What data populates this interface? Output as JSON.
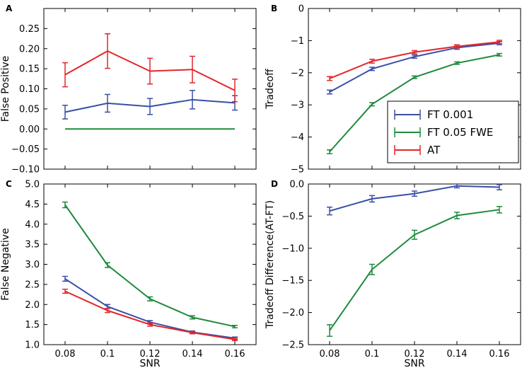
{
  "colors": {
    "blue": "#3a4fa7",
    "green": "#1f8a3c",
    "red": "#e3272b"
  },
  "legend": [
    {
      "label": "FT 0.001",
      "color": "#3a4fa7"
    },
    {
      "label": "FT 0.05 FWE",
      "color": "#1f8a3c"
    },
    {
      "label": "AT",
      "color": "#e3272b"
    }
  ],
  "chart_data": [
    {
      "panel": "A",
      "type": "line",
      "xlabel": "",
      "ylabel": "False Positive",
      "x": [
        0.08,
        0.1,
        0.12,
        0.14,
        0.16
      ],
      "xticks": [
        "0.08",
        "0.1",
        "0.12",
        "0.14",
        "0.16"
      ],
      "show_xticklabels": false,
      "ylim": [
        -0.1,
        0.3
      ],
      "yticks": [
        "−0.10",
        "−0.05",
        "0.00",
        "0.05",
        "0.10",
        "0.15",
        "0.20",
        "0.25"
      ],
      "ytick_values": [
        -0.1,
        -0.05,
        0,
        0.05,
        0.1,
        0.15,
        0.2,
        0.25
      ],
      "series": [
        {
          "name": "FT 0.001",
          "color": "#3a4fa7",
          "values": [
            0.042,
            0.064,
            0.056,
            0.073,
            0.065
          ],
          "errors": [
            0.017,
            0.022,
            0.02,
            0.023,
            0.018
          ]
        },
        {
          "name": "FT 0.05 FWE",
          "color": "#1f8a3c",
          "values": [
            0.0,
            0.0,
            0.0,
            0.0,
            0.0
          ],
          "errors": null
        },
        {
          "name": "AT",
          "color": "#e3272b",
          "values": [
            0.135,
            0.194,
            0.144,
            0.148,
            0.096
          ],
          "errors": [
            0.03,
            0.043,
            0.032,
            0.033,
            0.028
          ]
        }
      ]
    },
    {
      "panel": "B",
      "type": "line",
      "xlabel": "",
      "ylabel": "Tradeoff",
      "x": [
        0.08,
        0.1,
        0.12,
        0.14,
        0.16
      ],
      "xticks": [
        "0.08",
        "0.1",
        "0.12",
        "0.14",
        "0.16"
      ],
      "show_xticklabels": false,
      "ylim": [
        -5,
        0
      ],
      "yticks": [
        "−5",
        "−4",
        "−3",
        "−2",
        "−1",
        "0"
      ],
      "ytick_values": [
        -5,
        -4,
        -3,
        -2,
        -1,
        0
      ],
      "legend_position": "center-right",
      "series": [
        {
          "name": "FT 0.001",
          "color": "#3a4fa7",
          "values": [
            -2.6,
            -1.88,
            -1.5,
            -1.22,
            -1.08
          ],
          "errors": [
            0.06,
            0.05,
            0.05,
            0.05,
            0.05
          ]
        },
        {
          "name": "FT 0.05 FWE",
          "color": "#1f8a3c",
          "values": [
            -4.46,
            -2.98,
            -2.14,
            -1.7,
            -1.44
          ],
          "errors": [
            0.06,
            0.05,
            0.04,
            0.04,
            0.04
          ]
        },
        {
          "name": "AT",
          "color": "#e3272b",
          "values": [
            -2.18,
            -1.64,
            -1.36,
            -1.18,
            -1.04
          ],
          "errors": [
            0.06,
            0.06,
            0.05,
            0.05,
            0.05
          ]
        }
      ]
    },
    {
      "panel": "C",
      "type": "line",
      "xlabel": "SNR",
      "ylabel": "False Negative",
      "x": [
        0.08,
        0.1,
        0.12,
        0.14,
        0.16
      ],
      "xticks": [
        "0.08",
        "0.1",
        "0.12",
        "0.14",
        "0.16"
      ],
      "show_xticklabels": true,
      "ylim": [
        1.0,
        5.0
      ],
      "yticks": [
        "1.0",
        "1.5",
        "2.0",
        "2.5",
        "3.0",
        "3.5",
        "4.0",
        "4.5",
        "5.0"
      ],
      "ytick_values": [
        1.0,
        1.5,
        2.0,
        2.5,
        3.0,
        3.5,
        4.0,
        4.5,
        5.0
      ],
      "series": [
        {
          "name": "FT 0.001",
          "color": "#3a4fa7",
          "values": [
            2.64,
            1.95,
            1.56,
            1.31,
            1.16
          ],
          "errors": [
            0.06,
            0.05,
            0.04,
            0.03,
            0.03
          ]
        },
        {
          "name": "FT 0.05 FWE",
          "color": "#1f8a3c",
          "values": [
            4.48,
            2.98,
            2.14,
            1.68,
            1.45
          ],
          "errors": [
            0.07,
            0.06,
            0.05,
            0.04,
            0.03
          ]
        },
        {
          "name": "AT",
          "color": "#e3272b",
          "values": [
            2.33,
            1.85,
            1.5,
            1.3,
            1.13
          ],
          "errors": [
            0.05,
            0.05,
            0.04,
            0.03,
            0.03
          ]
        }
      ]
    },
    {
      "panel": "D",
      "type": "line",
      "xlabel": "SNR",
      "ylabel": "Tradeoff Difference(AT-FT)",
      "x": [
        0.08,
        0.1,
        0.12,
        0.14,
        0.16
      ],
      "xticks": [
        "0.08",
        "0.1",
        "0.12",
        "0.14",
        "0.16"
      ],
      "show_xticklabels": true,
      "ylim": [
        -2.5,
        0.0
      ],
      "yticks": [
        "−2.5",
        "−2.0",
        "−1.5",
        "−1.0",
        "−0.5",
        "0.0"
      ],
      "ytick_values": [
        -2.5,
        -2.0,
        -1.5,
        -1.0,
        -0.5,
        0.0
      ],
      "series": [
        {
          "name": "FT 0.001",
          "color": "#3a4fa7",
          "values": [
            -0.42,
            -0.23,
            -0.15,
            -0.03,
            -0.05
          ],
          "errors": [
            0.06,
            0.05,
            0.04,
            0.03,
            0.04
          ]
        },
        {
          "name": "FT 0.05 FWE",
          "color": "#1f8a3c",
          "values": [
            -2.28,
            -1.33,
            -0.79,
            -0.49,
            -0.4
          ],
          "errors": [
            0.09,
            0.08,
            0.07,
            0.05,
            0.05
          ]
        }
      ]
    }
  ]
}
